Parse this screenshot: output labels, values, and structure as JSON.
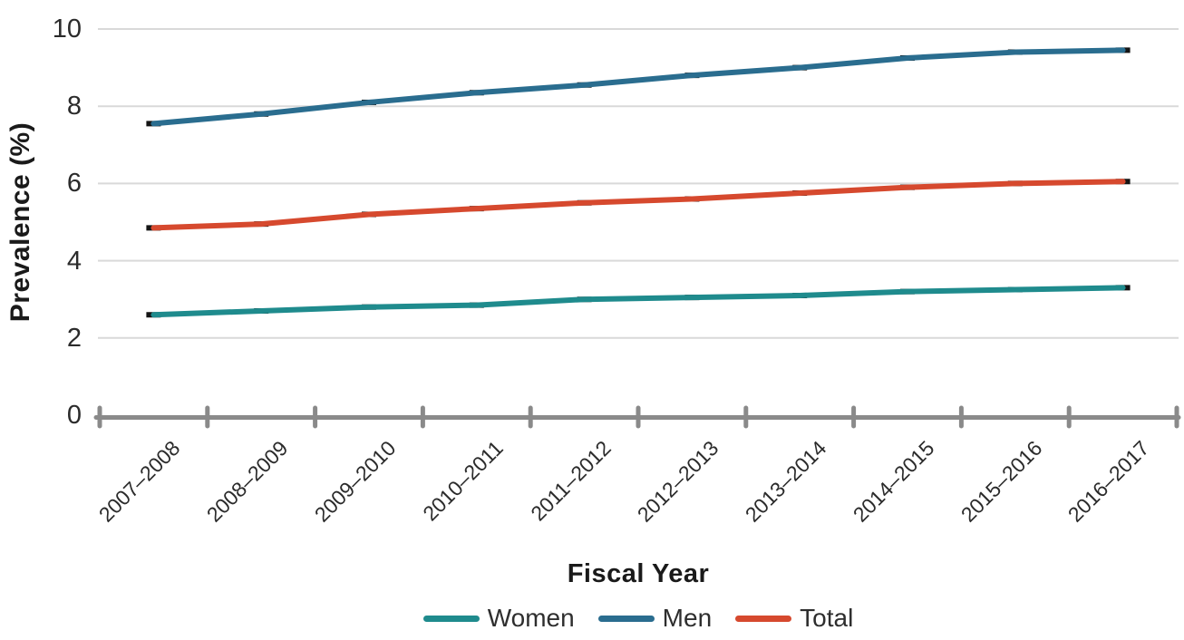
{
  "colors": {
    "grid": "#d9d9d9",
    "axis": "#8a8a8a",
    "point_marker": "#141414",
    "tick_text": "#2b2b2b",
    "title_text": "#1a1a1a"
  },
  "chart_data": {
    "type": "line",
    "title": "",
    "xlabel": "Fiscal Year",
    "ylabel": "Prevalence (%)",
    "ylim": [
      0,
      10
    ],
    "yticks": [
      0,
      2,
      4,
      6,
      8,
      10
    ],
    "grid": "horizontal gridlines at 2,4,6,8,10",
    "legend_position": "bottom",
    "marker_style": "short black horizontal dash at each data point",
    "categories": [
      "2007–2008",
      "2008–2009",
      "2009–2010",
      "2010–2011",
      "2011–2012",
      "2012–2013",
      "2013–2014",
      "2014–2015",
      "2015–2016",
      "2016–2017"
    ],
    "series": [
      {
        "name": "Women",
        "color": "#1f8b8d",
        "values": [
          2.6,
          2.7,
          2.8,
          2.85,
          3.0,
          3.05,
          3.1,
          3.2,
          3.25,
          3.3
        ]
      },
      {
        "name": "Men",
        "color": "#2a6d8f",
        "values": [
          7.55,
          7.8,
          8.1,
          8.35,
          8.55,
          8.8,
          9.0,
          9.25,
          9.4,
          9.45
        ]
      },
      {
        "name": "Total",
        "color": "#d6492e",
        "values": [
          4.85,
          4.95,
          5.2,
          5.35,
          5.5,
          5.6,
          5.75,
          5.9,
          6.0,
          6.05
        ]
      }
    ]
  }
}
